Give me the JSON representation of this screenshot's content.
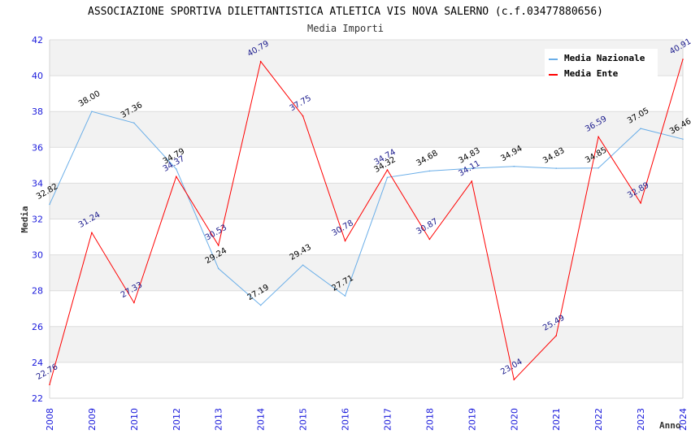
{
  "chart_data": {
    "type": "line",
    "title": "ASSOCIAZIONE SPORTIVA DILETTANTISTICA ATLETICA VIS NOVA SALERNO (c.f.03477880656)",
    "subtitle": "Media Importi",
    "xlabel": "Anno",
    "ylabel": "Media",
    "ylim": [
      22,
      42
    ],
    "yticks": [
      "22",
      "24",
      "26",
      "28",
      "30",
      "32",
      "34",
      "36",
      "38",
      "40",
      "42"
    ],
    "categories": [
      "2008",
      "2009",
      "2010",
      "2012",
      "2013",
      "2014",
      "2015",
      "2016",
      "2017",
      "2018",
      "2019",
      "2020",
      "2021",
      "2022",
      "2023",
      "2024"
    ],
    "grid": true,
    "legend_position": "top-right",
    "series": [
      {
        "name": "Media Nazionale",
        "color": "#6aaee8",
        "label_color": "#000000",
        "values": [
          32.82,
          38.0,
          37.36,
          34.79,
          29.24,
          27.19,
          29.43,
          27.71,
          34.32,
          34.68,
          34.83,
          34.94,
          34.83,
          34.85,
          37.05,
          36.46
        ],
        "labels": [
          "32.82",
          "38.00",
          "37.36",
          "34.79",
          "29.24",
          "27.19",
          "29.43",
          "27.71",
          "34.32",
          "34.68",
          "34.83",
          "34.94",
          "34.83",
          "34.85",
          "37.05",
          "36.46"
        ]
      },
      {
        "name": "Media Ente",
        "color": "#ff0000",
        "label_color": "#1a1a8c",
        "values": [
          22.76,
          31.24,
          27.33,
          34.37,
          30.53,
          40.79,
          37.75,
          30.78,
          34.74,
          30.87,
          34.11,
          23.04,
          25.49,
          36.59,
          32.89,
          40.91
        ],
        "labels": [
          "22.76",
          "31.24",
          "27.33",
          "34.37",
          "30.53",
          "40.79",
          "37.75",
          "30.78",
          "34.74",
          "30.87",
          "34.11",
          "23.04",
          "25.49",
          "36.59",
          "32.89",
          "40.91"
        ]
      }
    ]
  }
}
